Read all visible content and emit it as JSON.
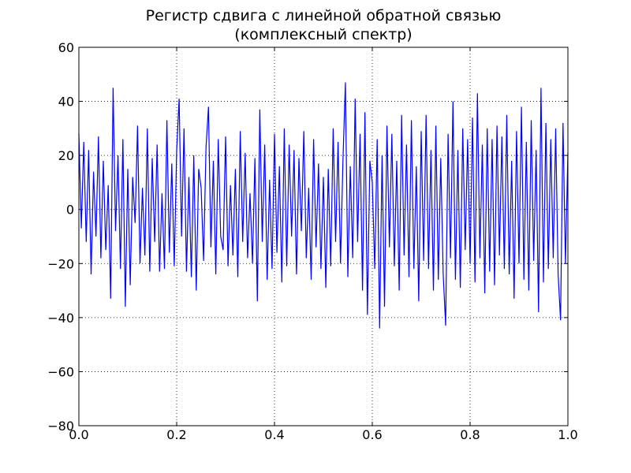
{
  "chart_data": {
    "type": "line",
    "title": "Регистр сдвига с линейной обратной связью",
    "subtitle": "(комплексный спектр)",
    "xlim": [
      0,
      1
    ],
    "ylim": [
      -80,
      60
    ],
    "xticks": [
      {
        "value": 0,
        "label": "0.0"
      },
      {
        "value": 0.2,
        "label": "0.2"
      },
      {
        "value": 0.4,
        "label": "0.4"
      },
      {
        "value": 0.6,
        "label": "0.6"
      },
      {
        "value": 0.8,
        "label": "0.8"
      },
      {
        "value": 1,
        "label": "1.0"
      }
    ],
    "yticks": [
      {
        "value": -80,
        "label": "−80"
      },
      {
        "value": -60,
        "label": "−60"
      },
      {
        "value": -40,
        "label": "−40"
      },
      {
        "value": -20,
        "label": "−20"
      },
      0,
      20,
      40,
      60
    ],
    "grid": true,
    "x": [
      0,
      0.005,
      0.01,
      0.015,
      0.02,
      0.025,
      0.03,
      0.035,
      0.04,
      0.045,
      0.05,
      0.055,
      0.06,
      0.065,
      0.07,
      0.075,
      0.08,
      0.085,
      0.09,
      0.095,
      0.1,
      0.105,
      0.11,
      0.115,
      0.12,
      0.125,
      0.13,
      0.135,
      0.14,
      0.145,
      0.15,
      0.155,
      0.16,
      0.165,
      0.17,
      0.175,
      0.18,
      0.185,
      0.19,
      0.195,
      0.2,
      0.205,
      0.21,
      0.215,
      0.22,
      0.225,
      0.23,
      0.235,
      0.24,
      0.245,
      0.25,
      0.255,
      0.26,
      0.265,
      0.27,
      0.275,
      0.28,
      0.285,
      0.29,
      0.295,
      0.3,
      0.305,
      0.31,
      0.315,
      0.32,
      0.325,
      0.33,
      0.335,
      0.34,
      0.345,
      0.35,
      0.355,
      0.36,
      0.365,
      0.37,
      0.375,
      0.38,
      0.385,
      0.39,
      0.395,
      0.4,
      0.405,
      0.41,
      0.415,
      0.42,
      0.425,
      0.43,
      0.435,
      0.44,
      0.445,
      0.45,
      0.455,
      0.46,
      0.465,
      0.47,
      0.475,
      0.48,
      0.485,
      0.49,
      0.495,
      0.5,
      0.505,
      0.51,
      0.515,
      0.52,
      0.525,
      0.53,
      0.535,
      0.54,
      0.545,
      0.55,
      0.555,
      0.56,
      0.565,
      0.57,
      0.575,
      0.58,
      0.585,
      0.59,
      0.595,
      0.6,
      0.605,
      0.61,
      0.615,
      0.62,
      0.625,
      0.63,
      0.635,
      0.64,
      0.645,
      0.65,
      0.655,
      0.66,
      0.665,
      0.67,
      0.675,
      0.68,
      0.685,
      0.69,
      0.695,
      0.7,
      0.705,
      0.71,
      0.715,
      0.72,
      0.725,
      0.73,
      0.735,
      0.74,
      0.745,
      0.75,
      0.755,
      0.76,
      0.765,
      0.77,
      0.775,
      0.78,
      0.785,
      0.79,
      0.795,
      0.8,
      0.805,
      0.81,
      0.815,
      0.82,
      0.825,
      0.83,
      0.835,
      0.84,
      0.845,
      0.85,
      0.855,
      0.86,
      0.865,
      0.87,
      0.875,
      0.88,
      0.885,
      0.89,
      0.895,
      0.9,
      0.905,
      0.91,
      0.915,
      0.92,
      0.925,
      0.93,
      0.935,
      0.94,
      0.945,
      0.95,
      0.955,
      0.96,
      0.965,
      0.97,
      0.975,
      0.98,
      0.985,
      0.99,
      0.995,
      1
    ],
    "series": [
      {
        "color": "#0000ff",
        "values": [
          28,
          -7,
          25,
          -12,
          22,
          -24,
          14,
          -10,
          27,
          -18,
          18,
          -15,
          9,
          -33,
          45,
          -8,
          20,
          -22,
          26,
          -36,
          15,
          -28,
          12,
          -5,
          31,
          -20,
          8,
          -17,
          30,
          -23,
          19,
          -12,
          24,
          -23,
          6,
          -22,
          33,
          -16,
          17,
          -21,
          22,
          41,
          -10,
          30,
          -23,
          12,
          -25,
          20,
          -30,
          15,
          8,
          -19,
          23,
          38,
          -14,
          18,
          -24,
          26,
          -10,
          -15,
          27,
          -21,
          9,
          -17,
          15,
          -25,
          29,
          -12,
          21,
          -18,
          6,
          -20,
          19,
          -34,
          37,
          -12,
          24,
          -26,
          11,
          -22,
          28,
          -16,
          16,
          -27,
          30,
          -21,
          24,
          -10,
          22,
          -24,
          19,
          -8,
          29,
          -18,
          8,
          -26,
          26,
          -14,
          17,
          -22,
          12,
          -29,
          15,
          -21,
          30,
          -12,
          25,
          -20,
          18,
          47,
          -25,
          16,
          -18,
          41,
          -12,
          28,
          -30,
          36,
          -39,
          18,
          10,
          -22,
          26,
          -44,
          20,
          -36,
          31,
          -14,
          28,
          -21,
          18,
          -30,
          35,
          -17,
          24,
          -25,
          33,
          -22,
          16,
          -34,
          29,
          -19,
          35,
          -22,
          22,
          -30,
          31,
          -26,
          19,
          -24,
          -43,
          28,
          -18,
          40,
          -26,
          22,
          -29,
          30,
          -15,
          26,
          -20,
          34,
          -27,
          43,
          -18,
          24,
          -31,
          30,
          -23,
          26,
          -28,
          31,
          -17,
          27,
          -22,
          35,
          -24,
          18,
          -33,
          29,
          -20,
          38,
          -26,
          25,
          -30,
          33,
          -19,
          22,
          -38,
          45,
          -27,
          32,
          -22,
          26,
          -18,
          30,
          -24,
          -41,
          32,
          -20,
          21
        ]
      }
    ]
  }
}
